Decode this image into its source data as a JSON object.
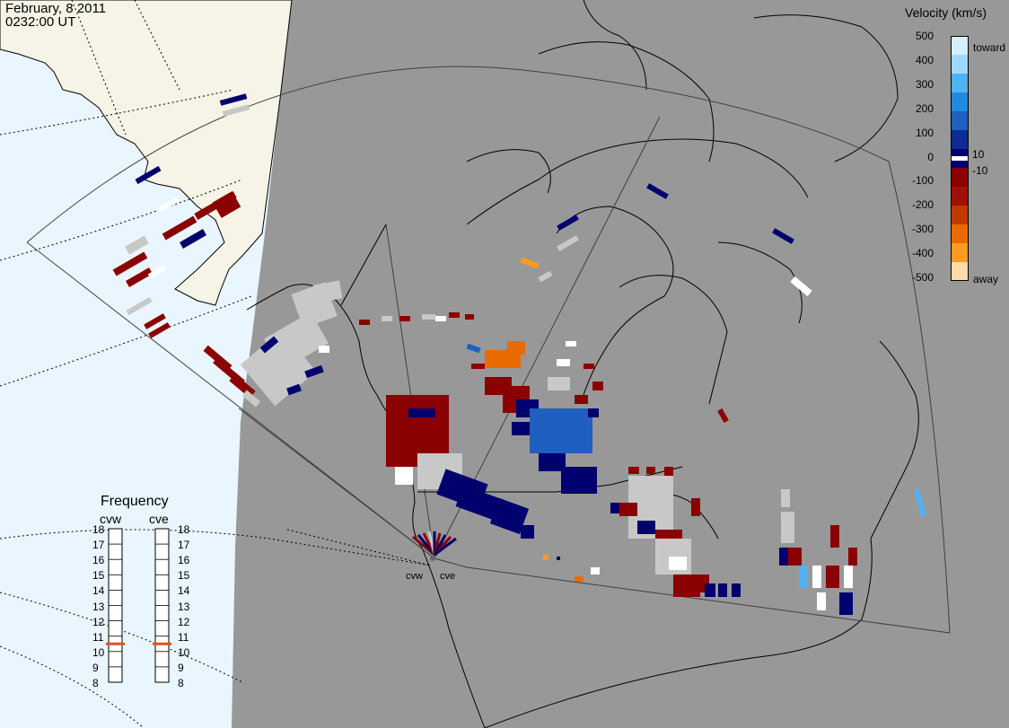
{
  "title": {
    "date": "February, 8 2011",
    "time": "0232:00 UT"
  },
  "colors": {
    "ocean": "#e9f6ff",
    "night_land": "#989898",
    "day_land": "#f6f4e6",
    "coast": "#000000",
    "ground_scatter": "#c8c8c8"
  },
  "legend": {
    "title": "Velocity (km/s)",
    "ticks": [
      "500",
      "400",
      "300",
      "200",
      "100",
      "0",
      "-100",
      "-200",
      "-300",
      "-400",
      "-500"
    ],
    "small_pos": "10",
    "small_neg": "-10",
    "toward": "toward",
    "away": "away",
    "colorbar": [
      "#d6efff",
      "#9fd8ff",
      "#4fb3f3",
      "#1e8ae0",
      "#1f5fbf",
      "#0d2b95",
      "#00006e",
      "#8b0000",
      "#a11005",
      "#c03a00",
      "#ea6a00",
      "#ff9a20",
      "#ffd9a8"
    ]
  },
  "frequency": {
    "title": "Frequency",
    "radars": [
      {
        "name": "cvw",
        "value_mhz": 10.5
      },
      {
        "name": "cve",
        "value_mhz": 10.5
      }
    ],
    "scale": [
      "18",
      "17",
      "16",
      "15",
      "14",
      "13",
      "12",
      "11",
      "10",
      "9",
      "8"
    ]
  },
  "radar_sites": [
    {
      "name": "cvw"
    },
    {
      "name": "cve"
    }
  ]
}
